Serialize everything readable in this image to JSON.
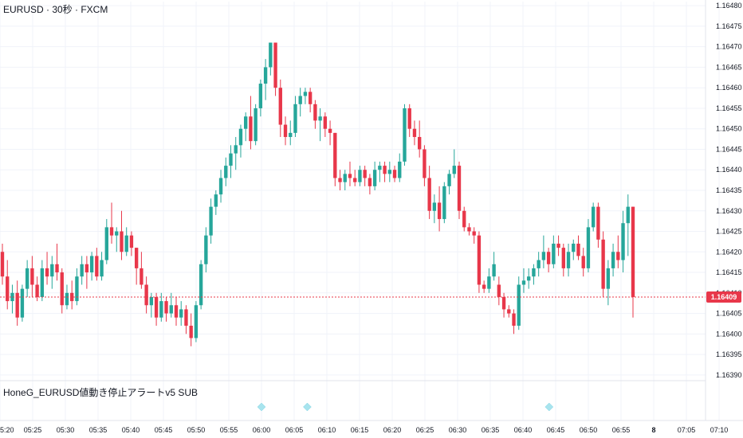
{
  "chart_title": "EURUSD · 30秒 · FXCM",
  "indicator_label": "HoneG_EURUSD値動き停止アラートv5 SUB",
  "current_price": "1.16409",
  "colors": {
    "up": "#26a69a",
    "down": "#e8374a",
    "grid": "#f0f3fa",
    "price_line": "#e8374a",
    "marker": "#a8e4ee"
  },
  "chart_data": {
    "type": "candlestick",
    "title": "EURUSD · 30秒 · FXCM",
    "ylim": [
      1.16389,
      1.16481
    ],
    "y_ticks": [
      "1.16390",
      "1.16395",
      "1.16400",
      "1.16405",
      "1.16410",
      "1.16415",
      "1.16420",
      "1.16425",
      "1.16430",
      "1.16435",
      "1.16440",
      "1.16445",
      "1.16450",
      "1.16455",
      "1.16460",
      "1.16465",
      "1.16470",
      "1.16475",
      "1.16480"
    ],
    "x_ticks": [
      "5:20",
      "05:25",
      "05:30",
      "05:35",
      "05:40",
      "05:45",
      "05:50",
      "05:55",
      "06:00",
      "06:05",
      "06:10",
      "06:15",
      "06:20",
      "06:25",
      "06:30",
      "06:35",
      "06:40",
      "06:45",
      "06:50",
      "06:55",
      "8",
      "07:05",
      "07:10"
    ],
    "marker_times": [
      "06:00",
      "06:07",
      "06:44"
    ],
    "ohlc": [
      [
        1.1642,
        1.16422,
        1.16412,
        1.16414
      ],
      [
        1.16414,
        1.16418,
        1.16406,
        1.16408
      ],
      [
        1.16408,
        1.16412,
        1.16405,
        1.1641
      ],
      [
        1.1641,
        1.16413,
        1.16402,
        1.16404
      ],
      [
        1.16404,
        1.16412,
        1.16403,
        1.16411
      ],
      [
        1.16411,
        1.16418,
        1.16409,
        1.16416
      ],
      [
        1.16416,
        1.16419,
        1.16409,
        1.16412
      ],
      [
        1.16412,
        1.16414,
        1.16408,
        1.16409
      ],
      [
        1.16409,
        1.16418,
        1.16408,
        1.16416
      ],
      [
        1.16416,
        1.1642,
        1.16412,
        1.16414
      ],
      [
        1.16414,
        1.16419,
        1.16411,
        1.16417
      ],
      [
        1.16417,
        1.16422,
        1.16413,
        1.16415
      ],
      [
        1.16415,
        1.16416,
        1.16405,
        1.16407
      ],
      [
        1.16407,
        1.16412,
        1.16406,
        1.1641
      ],
      [
        1.1641,
        1.16413,
        1.16406,
        1.16408
      ],
      [
        1.16408,
        1.16416,
        1.16407,
        1.16414
      ],
      [
        1.16414,
        1.16419,
        1.16412,
        1.16417
      ],
      [
        1.16417,
        1.16419,
        1.16411,
        1.16415
      ],
      [
        1.16415,
        1.1642,
        1.16413,
        1.16419
      ],
      [
        1.16419,
        1.16421,
        1.16413,
        1.16414
      ],
      [
        1.16414,
        1.1642,
        1.16413,
        1.16418
      ],
      [
        1.16418,
        1.16428,
        1.16417,
        1.16426
      ],
      [
        1.16426,
        1.16432,
        1.16422,
        1.16424
      ],
      [
        1.16424,
        1.16426,
        1.1642,
        1.16425
      ],
      [
        1.16425,
        1.1643,
        1.16418,
        1.1642
      ],
      [
        1.1642,
        1.16426,
        1.16419,
        1.16424
      ],
      [
        1.16424,
        1.16425,
        1.16419,
        1.16421
      ],
      [
        1.16421,
        1.16421,
        1.16412,
        1.16416
      ],
      [
        1.16416,
        1.1642,
        1.16411,
        1.16412
      ],
      [
        1.16412,
        1.16414,
        1.16405,
        1.16407
      ],
      [
        1.16407,
        1.1641,
        1.16404,
        1.16409
      ],
      [
        1.16409,
        1.1641,
        1.16402,
        1.16404
      ],
      [
        1.16404,
        1.1641,
        1.16403,
        1.16408
      ],
      [
        1.16408,
        1.16409,
        1.16403,
        1.16405
      ],
      [
        1.16405,
        1.1641,
        1.16404,
        1.16407
      ],
      [
        1.16407,
        1.16409,
        1.16402,
        1.16404
      ],
      [
        1.16404,
        1.16408,
        1.16402,
        1.16406
      ],
      [
        1.16406,
        1.16407,
        1.164,
        1.16402
      ],
      [
        1.16402,
        1.16405,
        1.16397,
        1.16399
      ],
      [
        1.16399,
        1.16408,
        1.16398,
        1.16407
      ],
      [
        1.16407,
        1.16418,
        1.16406,
        1.16417
      ],
      [
        1.16417,
        1.16426,
        1.16415,
        1.16424
      ],
      [
        1.16424,
        1.16433,
        1.16422,
        1.16431
      ],
      [
        1.16431,
        1.16435,
        1.16429,
        1.16434
      ],
      [
        1.16434,
        1.1644,
        1.16432,
        1.16438
      ],
      [
        1.16438,
        1.16443,
        1.16436,
        1.16441
      ],
      [
        1.16441,
        1.16446,
        1.16438,
        1.16444
      ],
      [
        1.16444,
        1.16448,
        1.1644,
        1.16446
      ],
      [
        1.16446,
        1.16451,
        1.16443,
        1.1645
      ],
      [
        1.1645,
        1.16454,
        1.16447,
        1.16453
      ],
      [
        1.16453,
        1.16458,
        1.16445,
        1.16447
      ],
      [
        1.16447,
        1.16456,
        1.16446,
        1.16455
      ],
      [
        1.16455,
        1.16462,
        1.16453,
        1.16461
      ],
      [
        1.16461,
        1.16467,
        1.16457,
        1.16465
      ],
      [
        1.16465,
        1.16471,
        1.16463,
        1.16471
      ],
      [
        1.16471,
        1.16471,
        1.16458,
        1.1646
      ],
      [
        1.1646,
        1.16462,
        1.16448,
        1.16451
      ],
      [
        1.16451,
        1.16453,
        1.16446,
        1.16448
      ],
      [
        1.16448,
        1.16452,
        1.16446,
        1.16449
      ],
      [
        1.16449,
        1.16458,
        1.16448,
        1.16456
      ],
      [
        1.16456,
        1.1646,
        1.16453,
        1.16458
      ],
      [
        1.16458,
        1.1646,
        1.16456,
        1.16459
      ],
      [
        1.16459,
        1.1646,
        1.16454,
        1.16456
      ],
      [
        1.16456,
        1.16457,
        1.1645,
        1.16452
      ],
      [
        1.16452,
        1.16455,
        1.16447,
        1.16453
      ],
      [
        1.16453,
        1.16454,
        1.16448,
        1.1645
      ],
      [
        1.1645,
        1.16452,
        1.16446,
        1.16449
      ],
      [
        1.16449,
        1.16449,
        1.16436,
        1.16438
      ],
      [
        1.16438,
        1.1644,
        1.16435,
        1.16437
      ],
      [
        1.16437,
        1.1644,
        1.16435,
        1.16439
      ],
      [
        1.16439,
        1.16442,
        1.16436,
        1.16438
      ],
      [
        1.16438,
        1.1644,
        1.16436,
        1.16437
      ],
      [
        1.16437,
        1.16441,
        1.16436,
        1.1644
      ],
      [
        1.1644,
        1.16441,
        1.16436,
        1.16438
      ],
      [
        1.16438,
        1.16439,
        1.16434,
        1.16436
      ],
      [
        1.16436,
        1.16442,
        1.16435,
        1.1644
      ],
      [
        1.1644,
        1.16442,
        1.16437,
        1.16441
      ],
      [
        1.16441,
        1.16442,
        1.16437,
        1.16439
      ],
      [
        1.16439,
        1.16442,
        1.16437,
        1.1644
      ],
      [
        1.1644,
        1.16441,
        1.16437,
        1.16438
      ],
      [
        1.16438,
        1.16444,
        1.16437,
        1.16442
      ],
      [
        1.16442,
        1.16456,
        1.16441,
        1.16455
      ],
      [
        1.16455,
        1.16456,
        1.16448,
        1.1645
      ],
      [
        1.1645,
        1.16452,
        1.16446,
        1.16448
      ],
      [
        1.16448,
        1.16452,
        1.16443,
        1.16445
      ],
      [
        1.16445,
        1.16446,
        1.16436,
        1.16438
      ],
      [
        1.16438,
        1.16441,
        1.16428,
        1.1643
      ],
      [
        1.1643,
        1.16434,
        1.16427,
        1.16432
      ],
      [
        1.16432,
        1.16436,
        1.16425,
        1.16428
      ],
      [
        1.16428,
        1.16437,
        1.16427,
        1.16436
      ],
      [
        1.16436,
        1.1644,
        1.16434,
        1.16439
      ],
      [
        1.16439,
        1.16445,
        1.16438,
        1.16441
      ],
      [
        1.16441,
        1.16442,
        1.16428,
        1.1643
      ],
      [
        1.1643,
        1.16431,
        1.16425,
        1.16426
      ],
      [
        1.16426,
        1.16427,
        1.16424,
        1.16425
      ],
      [
        1.16425,
        1.16426,
        1.16422,
        1.16424
      ],
      [
        1.16424,
        1.16425,
        1.1641,
        1.16412
      ],
      [
        1.16412,
        1.16413,
        1.1641,
        1.16411
      ],
      [
        1.16411,
        1.16416,
        1.1641,
        1.16414
      ],
      [
        1.16414,
        1.1642,
        1.16413,
        1.16417
      ],
      [
        1.16412,
        1.16414,
        1.16407,
        1.16409
      ],
      [
        1.16409,
        1.1641,
        1.16404,
        1.16406
      ],
      [
        1.16406,
        1.16407,
        1.16404,
        1.16405
      ],
      [
        1.16405,
        1.16406,
        1.164,
        1.16402
      ],
      [
        1.16402,
        1.16414,
        1.16401,
        1.16412
      ],
      [
        1.16412,
        1.16416,
        1.1641,
        1.16413
      ],
      [
        1.16413,
        1.16416,
        1.16411,
        1.16414
      ],
      [
        1.16414,
        1.16417,
        1.16412,
        1.16416
      ],
      [
        1.16416,
        1.1642,
        1.16414,
        1.16418
      ],
      [
        1.16418,
        1.16424,
        1.16416,
        1.1642
      ],
      [
        1.1642,
        1.16421,
        1.16415,
        1.16417
      ],
      [
        1.16417,
        1.16424,
        1.16416,
        1.16422
      ],
      [
        1.16422,
        1.16424,
        1.16419,
        1.16421
      ],
      [
        1.16421,
        1.16422,
        1.16414,
        1.16416
      ],
      [
        1.16416,
        1.16422,
        1.16414,
        1.1642
      ],
      [
        1.1642,
        1.16423,
        1.16418,
        1.16422
      ],
      [
        1.16422,
        1.16424,
        1.16418,
        1.16419
      ],
      [
        1.16419,
        1.16421,
        1.16414,
        1.16416
      ],
      [
        1.16416,
        1.16428,
        1.16415,
        1.16426
      ],
      [
        1.16426,
        1.16432,
        1.16425,
        1.16431
      ],
      [
        1.16431,
        1.16432,
        1.16421,
        1.16423
      ],
      [
        1.16423,
        1.16425,
        1.16409,
        1.16411
      ],
      [
        1.16411,
        1.16418,
        1.16407,
        1.16416
      ],
      [
        1.16416,
        1.16422,
        1.16414,
        1.1642
      ],
      [
        1.1642,
        1.16424,
        1.16416,
        1.16418
      ],
      [
        1.16418,
        1.1643,
        1.16415,
        1.16427
      ],
      [
        1.16427,
        1.16434,
        1.16419,
        1.16431
      ],
      [
        1.16431,
        1.16431,
        1.16404,
        1.16409
      ]
    ]
  }
}
